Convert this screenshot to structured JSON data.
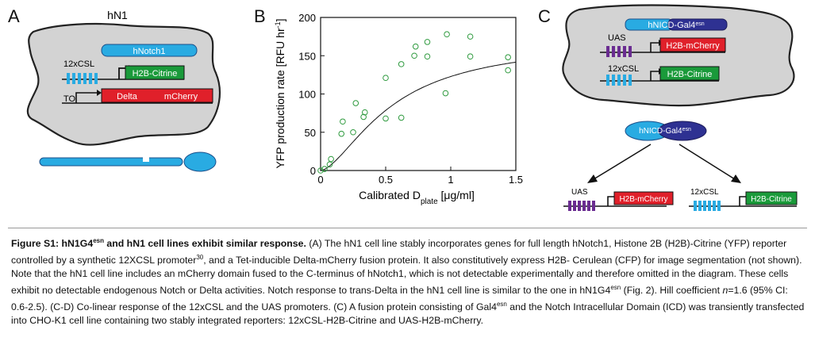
{
  "panelA": {
    "letter": "A",
    "title": "hN1",
    "notch_label": "hNotch1",
    "csl_label": "12xCSL",
    "citrine_label": "H2B-Citrine",
    "to_label": "TO",
    "delta_label": "Delta",
    "mcherry_label": "mCherry",
    "colors": {
      "cell": "#d3d3d3",
      "notch": "#29abe2",
      "citrine": "#1a9a3a",
      "delta": "#e0202a",
      "uas": "#6a2c91"
    }
  },
  "panelB": {
    "letter": "B"
  },
  "chart_data": {
    "type": "scatter",
    "xlabel_main": "Calibrated D",
    "xlabel_sub": "plate",
    "xlabel_unit": " [μg/ml]",
    "ylabel": "YFP production rate [RFU hr",
    "ylabel_sup": "-1",
    "ylabel_end": "]",
    "xlim": [
      0,
      1.5
    ],
    "ylim": [
      0,
      200
    ],
    "xticks": [
      0,
      0.5,
      1,
      1.5
    ],
    "xtick_labels": [
      "0",
      "0.5",
      "1",
      "1.5"
    ],
    "yticks": [
      0,
      50,
      100,
      150,
      200
    ],
    "ytick_labels": [
      "0",
      "50",
      "100",
      "150",
      "200"
    ],
    "points": [
      {
        "x": 0.0,
        "y": 0
      },
      {
        "x": 0.03,
        "y": 2
      },
      {
        "x": 0.07,
        "y": 8
      },
      {
        "x": 0.08,
        "y": 15
      },
      {
        "x": 0.16,
        "y": 48
      },
      {
        "x": 0.17,
        "y": 64
      },
      {
        "x": 0.25,
        "y": 50
      },
      {
        "x": 0.27,
        "y": 88
      },
      {
        "x": 0.33,
        "y": 70
      },
      {
        "x": 0.34,
        "y": 76
      },
      {
        "x": 0.5,
        "y": 68
      },
      {
        "x": 0.5,
        "y": 121
      },
      {
        "x": 0.62,
        "y": 69
      },
      {
        "x": 0.62,
        "y": 139
      },
      {
        "x": 0.72,
        "y": 150
      },
      {
        "x": 0.73,
        "y": 162
      },
      {
        "x": 0.82,
        "y": 149
      },
      {
        "x": 0.82,
        "y": 168
      },
      {
        "x": 0.96,
        "y": 101
      },
      {
        "x": 0.97,
        "y": 178
      },
      {
        "x": 1.15,
        "y": 149
      },
      {
        "x": 1.15,
        "y": 175
      },
      {
        "x": 1.44,
        "y": 131
      },
      {
        "x": 1.44,
        "y": 148
      }
    ],
    "fit": {
      "ymax": 170,
      "k": 0.55,
      "n": 1.6
    },
    "marker_color": "#2e9a3e",
    "grid": false
  },
  "panelC": {
    "letter": "C",
    "fusion_nicd": "hNICD-",
    "fusion_gal4": "Gal4",
    "fusion_sup": "esn",
    "uas_label": "UAS",
    "mcherry_label": "H2B-mCherry",
    "csl_label": "12xCSL",
    "citrine_label": "H2B-Citrine",
    "colors": {
      "nicd": "#29abe2",
      "gal4": "#2e3192"
    }
  },
  "caption": {
    "title_pre": "Figure S1: hN1G4",
    "title_sup": "esn",
    "title_post": " and hN1 cell lines exhibit similar response.",
    "s1": " (A) The hN1 cell line stably incorporates genes for full length hNotch1, Histone 2B (H2B)-Citrine (YFP) reporter controlled by a synthetic 12XCSL promoter",
    "ref": "30",
    "s2": ", and a Tet-inducible Delta-mCherry fusion protein. It also constitutively express H2B- Cerulean (CFP) for image segmentation (not shown).  Note that the hN1 cell line includes an mCherry domain fused to the C-terminus of hNotch1, which is not detectable experimentally and therefore omitted in the diagram.  These cells exhibit no detectable endogenous Notch or Delta activities.  Notch response to trans-Delta in the hN1 cell line is similar to the one in hN1G4",
    "sup2": "esn",
    "s3": " (Fig. 2). Hill coefficient ",
    "n_italic": "n",
    "s4": "=1.6 (95% CI: 0.6-2.5).   (C-D) Co-linear response of the 12xCSL and the UAS promoters. (C) A fusion protein consisting of Gal4",
    "sup3": "esn",
    "s5": " and the Notch Intracellular Domain (ICD) was transiently transfected into CHO-K1 cell line containing two stably integrated reporters: 12xCSL-H2B-Citrine and UAS-H2B-mCherry."
  }
}
